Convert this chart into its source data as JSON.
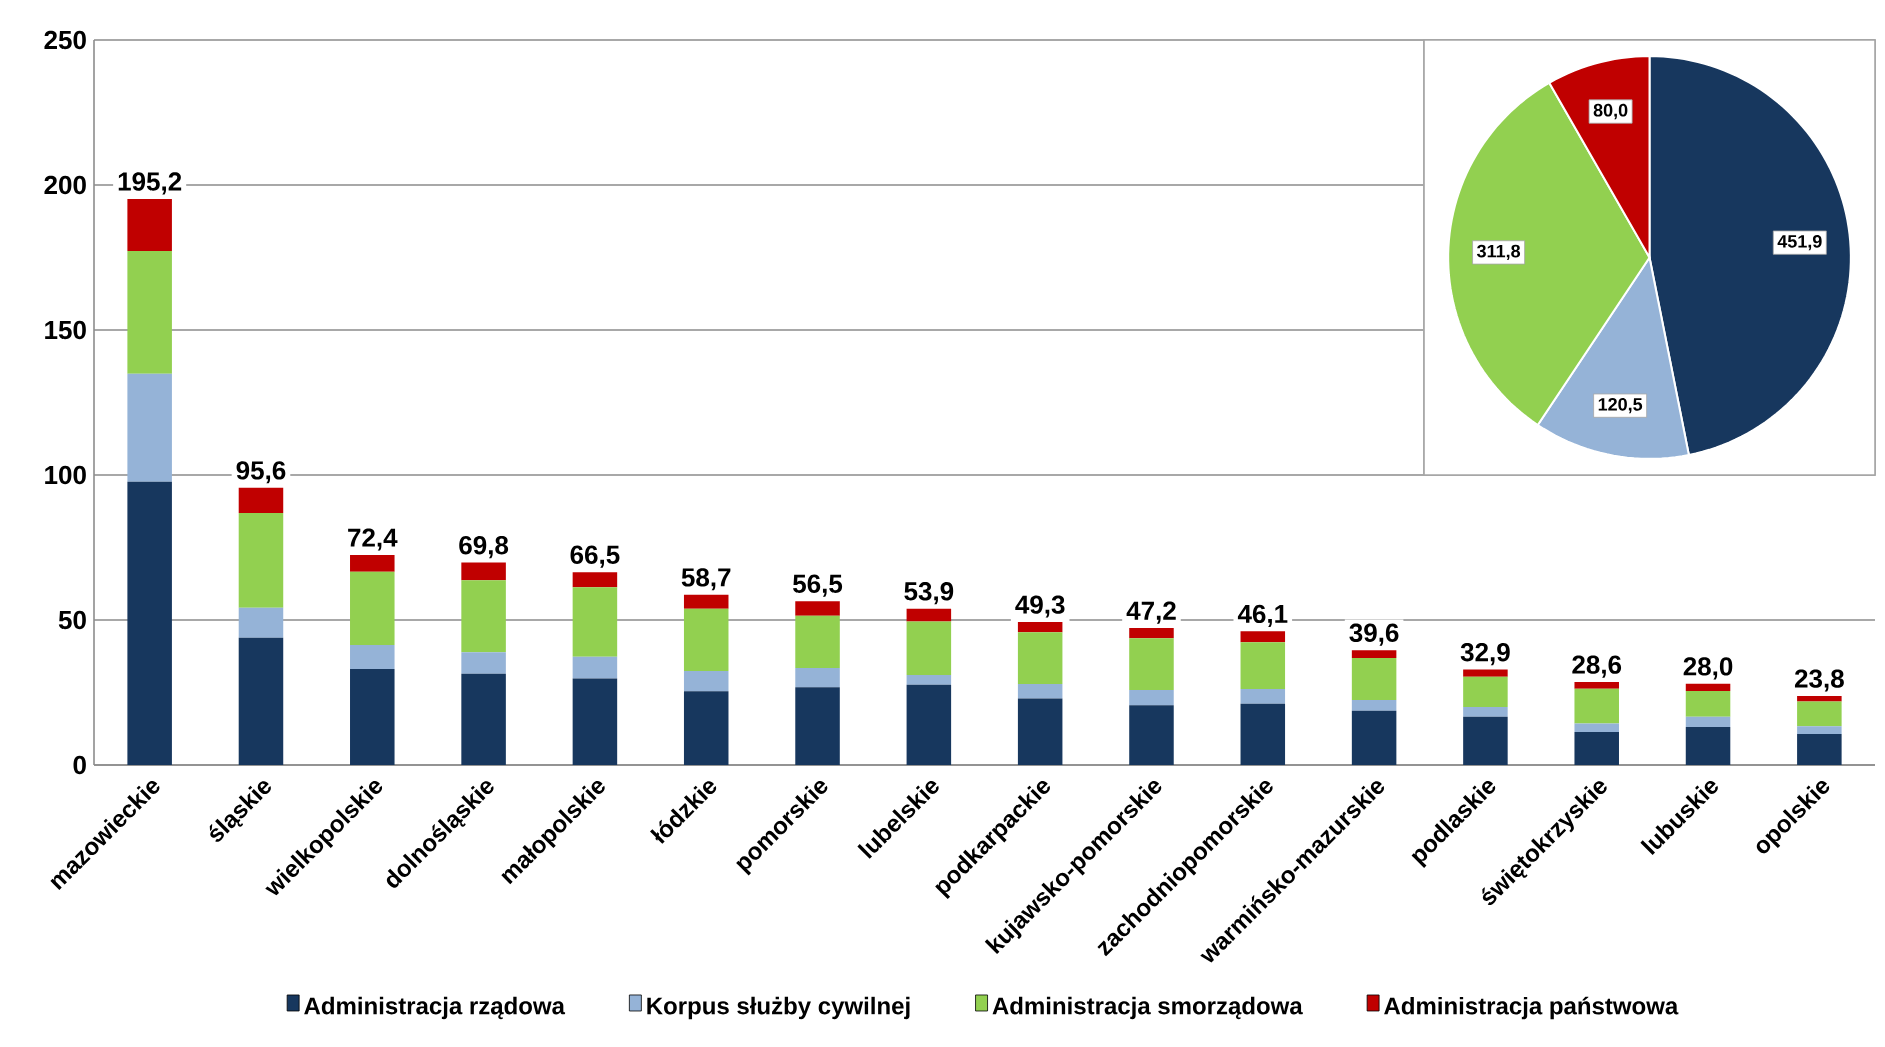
{
  "chart_data": [
    {
      "type": "bar",
      "stacked": true,
      "legend": "bottom",
      "grid": "y",
      "categories": [
        "mazowieckie",
        "śląskie",
        "wielkopolskie",
        "dolnośląskie",
        "małopolskie",
        "łódzkie",
        "pomorskie",
        "lubelskie",
        "podkarpackie",
        "kujawsko-pomorskie",
        "zachodniopomorskie",
        "warmińsko-mazurskie",
        "podlaskie",
        "świętokrzyskie",
        "lubuskie",
        "opolskie"
      ],
      "series": [
        {
          "name": "Administracja rządowa",
          "color": "#17375e",
          "values": [
            97.7,
            43.9,
            33.1,
            31.5,
            29.8,
            25.4,
            26.8,
            27.7,
            22.9,
            20.6,
            21.1,
            18.7,
            16.6,
            11.4,
            13.1,
            10.7
          ]
        },
        {
          "name": "Korpus służby cywilnej",
          "color": "#95b3d7",
          "values": [
            37.2,
            10.3,
            8.3,
            7.4,
            7.5,
            7.0,
            6.6,
            3.3,
            5.0,
            5.3,
            5.1,
            3.7,
            3.4,
            2.9,
            3.5,
            2.7
          ]
        },
        {
          "name": "Administracja smorządowa",
          "color": "#92d050",
          "values": [
            42.3,
            32.7,
            25.2,
            24.8,
            24.0,
            21.5,
            18.1,
            18.5,
            17.9,
            17.8,
            16.1,
            14.5,
            10.4,
            12.0,
            8.9,
            8.5
          ]
        },
        {
          "name": "Administracja państwowa",
          "color": "#c00000",
          "values": [
            18.0,
            8.7,
            5.8,
            6.1,
            5.2,
            4.8,
            5.0,
            4.4,
            3.5,
            3.5,
            3.8,
            2.7,
            2.5,
            2.3,
            2.5,
            1.9
          ]
        }
      ],
      "totals": [
        "195,2",
        "95,6",
        "72,4",
        "69,8",
        "66,5",
        "58,7",
        "56,5",
        "53,9",
        "49,3",
        "47,2",
        "46,1",
        "39,6",
        "32,9",
        "28,6",
        "28,0",
        "23,8"
      ],
      "ylim": [
        0,
        250
      ],
      "yticks": [
        0,
        50,
        100,
        150,
        200,
        250
      ]
    },
    {
      "type": "pie",
      "categories": [
        null,
        null,
        null,
        null
      ],
      "values": [
        451.9,
        120.5,
        311.8,
        80.0
      ],
      "colors": [
        "#17375e",
        "#95b3d7",
        "#92d050",
        "#c00000"
      ],
      "value_labels": [
        "451,9",
        "120,5",
        "311,8",
        "80,0"
      ]
    }
  ]
}
